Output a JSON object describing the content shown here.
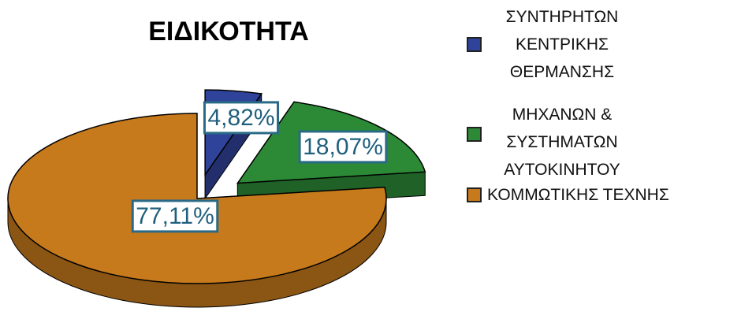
{
  "chart_data": {
    "type": "pie",
    "title": "ΕΙΔΙΚΟΤΗΤΑ",
    "categories": [
      "ΣΥΝΤΗΡΗΤΩΝ ΚΕΝΤΡΙΚΗΣ ΘΕΡΜΑΝΣΗΣ",
      "ΜΗΧΑΝΩΝ & ΣΥΣΤΗΜΑΤΩΝ ΑΥΤΟΚΙΝΗΤΟΥ",
      "ΚΟΜΜΩΤΙΚΗΣ ΤΕΧΝΗΣ"
    ],
    "values": [
      4.82,
      18.07,
      77.11
    ],
    "value_labels": [
      "4,82%",
      "18,07%",
      "77,11%"
    ],
    "colors": [
      "#30439a",
      "#2c8a36",
      "#c67a1c"
    ],
    "legend": "right"
  }
}
